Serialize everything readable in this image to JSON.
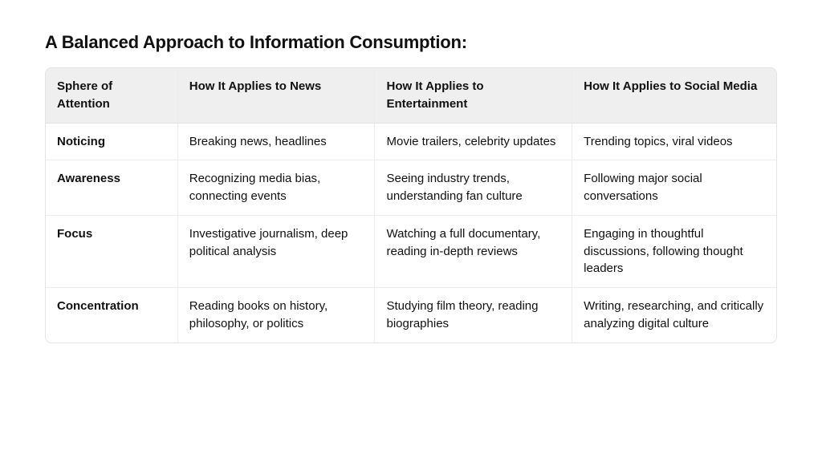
{
  "title": "A Balanced Approach to Information Consumption:",
  "columns": [
    "Sphere of Attention",
    "How It Applies to News",
    "How It Applies to Entertainment",
    "How It Applies to Social Media"
  ],
  "rows": [
    {
      "label": "Noticing",
      "cells": [
        "Breaking news, headlines",
        "Movie trailers, celebrity updates",
        "Trending topics, viral videos"
      ]
    },
    {
      "label": "Awareness",
      "cells": [
        "Recognizing media bias, connecting events",
        "Seeing industry trends, understanding fan culture",
        "Following major social conversations"
      ]
    },
    {
      "label": "Focus",
      "cells": [
        "Investigative journalism, deep political analysis",
        "Watching a full documentary, reading in-depth reviews",
        "Engaging in thoughtful discussions, following thought leaders"
      ]
    },
    {
      "label": "Concentration",
      "cells": [
        "Reading books on history, philosophy, or politics",
        "Studying film theory, reading biographies",
        "Writing, researching, and critically analyzing digital culture"
      ]
    }
  ],
  "style": {
    "type": "table",
    "background_color": "#ffffff",
    "header_background": "#efefef",
    "border_color": "#e3e3e3",
    "inner_border_color": "#ececec",
    "text_color": "#111111",
    "title_fontsize": 22,
    "title_fontweight": 700,
    "cell_fontsize": 15,
    "header_fontweight": 700,
    "rowlabel_fontweight": 700,
    "border_radius": 8,
    "column_widths_pct": [
      18,
      27,
      27,
      28
    ]
  }
}
